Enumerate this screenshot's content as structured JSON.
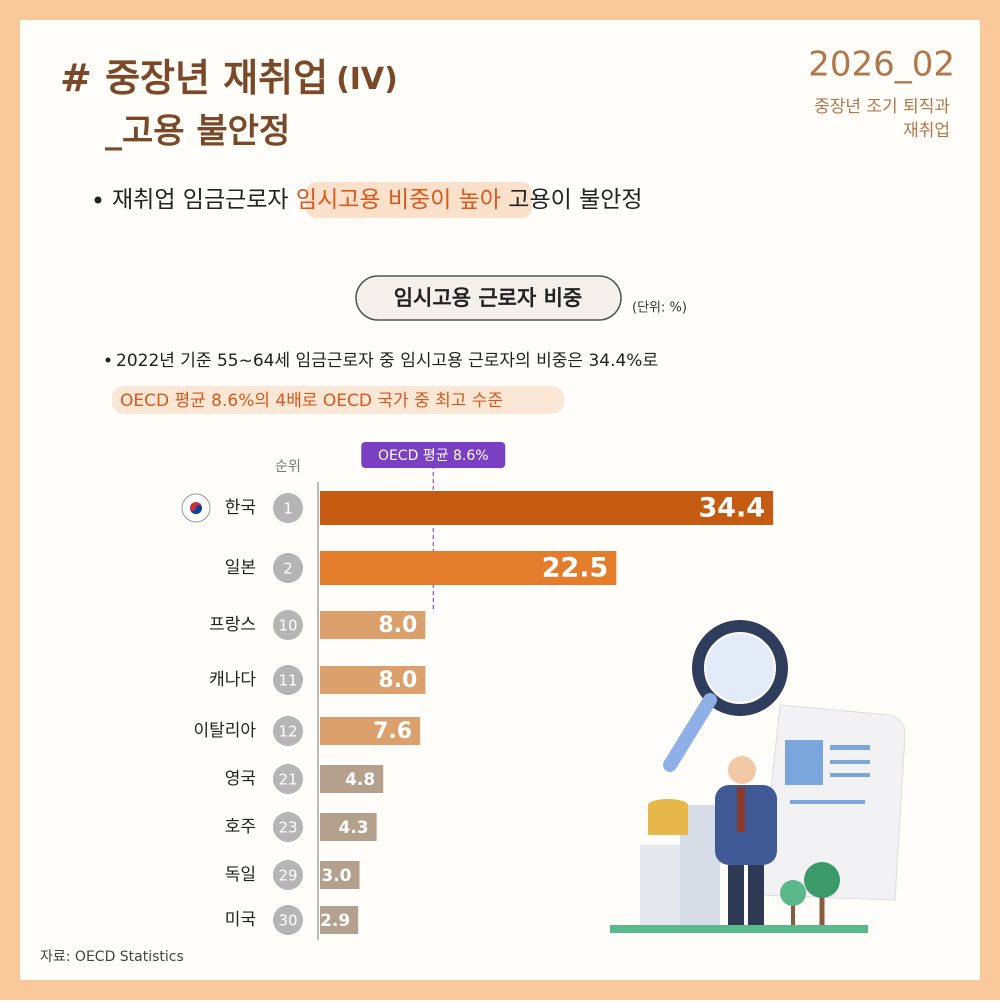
{
  "header": {
    "title": "# 중장년 재취업",
    "title_suffix": "(IV)",
    "subtitle": "_고용 불안정",
    "issue": "2026_02",
    "series_name": [
      "중장년 조기 퇴직과",
      "재취업"
    ]
  },
  "bullet": {
    "before": "재취업 임금근로자 ",
    "highlight": "임시고용 비중이 높아",
    "after": " 고용이 불안정"
  },
  "chart_data": {
    "type": "bar",
    "orientation": "horizontal",
    "title": "임시고용 근로자 비중",
    "unit": "(단위: %)",
    "notes": [
      "2022년 기준 55~64세 임금근로자 중 임시고용 근로자의 비중은 34.4%로",
      "OECD 평균 8.6%의 4배로 OECD 국가 중 최고 수준"
    ],
    "rank_header": "순위",
    "categories": [
      "한국",
      "일본",
      "프랑스",
      "캐나다",
      "이탈리아",
      "영국",
      "호주",
      "독일",
      "미국"
    ],
    "ranks": [
      1,
      2,
      10,
      11,
      12,
      21,
      23,
      29,
      30
    ],
    "values": [
      34.4,
      22.5,
      8.0,
      8.0,
      7.6,
      4.8,
      4.3,
      3.0,
      2.9
    ],
    "value_labels": [
      "34.4",
      "22.5",
      "8.0",
      "8.0",
      "7.6",
      "4.8",
      "4.3",
      "3.0",
      "2.9"
    ],
    "colors": [
      "#c55a11",
      "#e37d2b",
      "#dba06c",
      "#dba06c",
      "#dba06c",
      "#b3a08d",
      "#b3a08d",
      "#b3a08d",
      "#b3a08d"
    ],
    "xlim": [
      0,
      35
    ],
    "reference": {
      "value": 8.6,
      "label": "OECD 평균 8.6%"
    }
  },
  "source": "자료: OECD Statistics"
}
